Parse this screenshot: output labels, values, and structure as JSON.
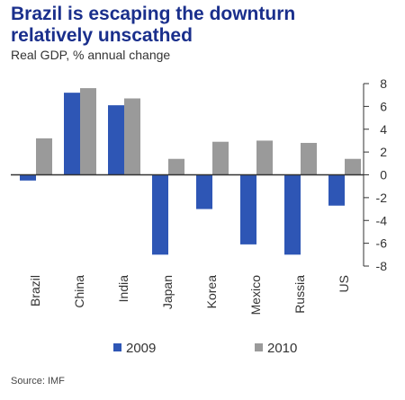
{
  "title_line1": "Brazil is escaping  the downturn",
  "title_line2": "relatively  unscathed",
  "subtitle": "Real GDP, % annual change",
  "source": "Source: IMF",
  "colors": {
    "series2009": "#2e56b5",
    "series2010": "#9a9a9a",
    "axis": "#333333",
    "title": "#1a2f8c"
  },
  "chart_data": {
    "type": "bar",
    "categories": [
      "Brazil",
      "China",
      "India",
      "Japan",
      "Korea",
      "Mexico",
      "Russia",
      "US"
    ],
    "series": [
      {
        "name": "2009",
        "values": [
          -0.5,
          7.2,
          6.1,
          -7.0,
          -3.0,
          -6.1,
          -7.0,
          -2.7
        ]
      },
      {
        "name": "2010",
        "values": [
          3.2,
          7.6,
          6.7,
          1.4,
          2.9,
          3.0,
          2.8,
          1.4
        ]
      }
    ],
    "ylim": [
      -8,
      8
    ],
    "yticks": [
      8,
      6,
      4,
      2,
      0,
      -2,
      -4,
      -6,
      -8
    ],
    "ytick_labels": [
      "8",
      "6",
      "4",
      "2",
      "0",
      "-2",
      "-4",
      "-6",
      "-8"
    ],
    "yaxis_position": "right",
    "legend_position": "bottom",
    "grid": false
  }
}
